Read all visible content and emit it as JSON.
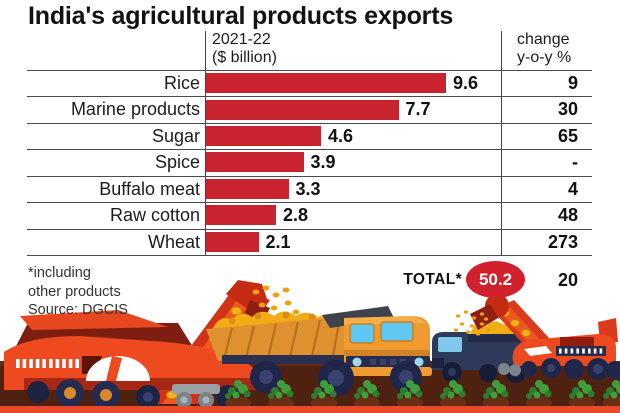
{
  "title": "India's agricultural products exports",
  "columns": {
    "value_header": "2021-22\n($ billion)",
    "change_header": "change\ny-o-y %"
  },
  "rows": [
    {
      "label": "Rice",
      "value": "9.6",
      "change": "9"
    },
    {
      "label": "Marine products",
      "value": "7.7",
      "change": "30"
    },
    {
      "label": "Sugar",
      "value": "4.6",
      "change": "65"
    },
    {
      "label": "Spice",
      "value": "3.9",
      "change": "-"
    },
    {
      "label": "Buffalo meat",
      "value": "3.3",
      "change": "4"
    },
    {
      "label": "Raw cotton",
      "value": "2.8",
      "change": "48"
    },
    {
      "label": "Wheat",
      "value": "2.1",
      "change": "273"
    }
  ],
  "total": {
    "label": "TOTAL*",
    "value": "50.2",
    "change": "20"
  },
  "footnote": {
    "line1": "*including",
    "line2": "other products",
    "line3": "Source: DGCIS"
  },
  "colors": {
    "bar": "#c9242e",
    "badge": "#d1212d",
    "line": "#4a4a4a",
    "grain": "#f5b11a",
    "machine_red": "#ee4a20",
    "machine_dark_red": "#8e1f10",
    "truck_orange": "#f09a30",
    "window_blue": "#5fc8f2",
    "navy": "#2e3a5a",
    "soil": "#4e2110",
    "crop_green": "#3f9e3b",
    "bottom_stripe": "#e8492b"
  },
  "chart_data": {
    "type": "bar",
    "orientation": "horizontal",
    "title": "India's agricultural products exports",
    "categories": [
      "Rice",
      "Marine products",
      "Sugar",
      "Spice",
      "Buffalo meat",
      "Raw cotton",
      "Wheat"
    ],
    "series": [
      {
        "name": "2021-22 ($ billion)",
        "values": [
          9.6,
          7.7,
          4.6,
          3.9,
          3.3,
          2.8,
          2.1
        ]
      },
      {
        "name": "change y-o-y %",
        "values": [
          "9",
          "30",
          "65",
          "-",
          "4",
          "48",
          "273"
        ]
      }
    ],
    "total": {
      "label": "TOTAL*",
      "value_billion": 50.2,
      "change_yoy_pct": 20,
      "note": "*including other products"
    },
    "xlabel": "2021-22 ($ billion)",
    "xlim": [
      0,
      10
    ],
    "grid": false,
    "legend": false,
    "source": "DGCIS",
    "bar_color": "#c9242e"
  }
}
